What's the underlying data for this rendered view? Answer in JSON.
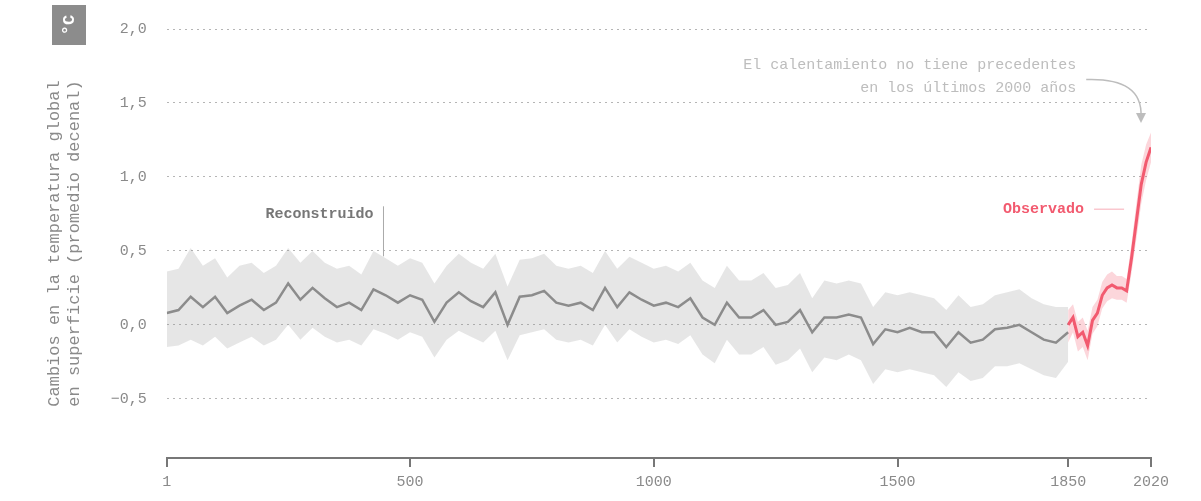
{
  "chart_data": {
    "type": "line",
    "unit": "°C",
    "y_label": [
      "Cambios en la temperatura global",
      "en superficie (promedio decenal)"
    ],
    "annotation": [
      "El calentamiento no tiene precedentes",
      "en los últimos 2000 años"
    ],
    "xlim": [
      1,
      2020
    ],
    "xticks": [
      1,
      500,
      1000,
      1500,
      1850,
      2020
    ],
    "ylim": [
      -0.9,
      2.0
    ],
    "yticks": [
      {
        "value": -0.5,
        "label": "−0,5"
      },
      {
        "value": 0.0,
        "label": "0,0"
      },
      {
        "value": 0.5,
        "label": "0,5"
      },
      {
        "value": 1.0,
        "label": "1,0"
      },
      {
        "value": 1.5,
        "label": "1,5"
      },
      {
        "value": 2.0,
        "label": "2,0"
      }
    ],
    "grid": true,
    "series": [
      {
        "name": "Reconstruido",
        "color": "#8c8c8c",
        "x": [
          1,
          25,
          50,
          75,
          100,
          125,
          150,
          175,
          200,
          225,
          250,
          275,
          300,
          325,
          350,
          375,
          400,
          425,
          450,
          475,
          500,
          525,
          550,
          575,
          600,
          625,
          650,
          675,
          700,
          725,
          750,
          775,
          800,
          825,
          850,
          875,
          900,
          925,
          950,
          975,
          1000,
          1025,
          1050,
          1075,
          1100,
          1125,
          1150,
          1175,
          1200,
          1225,
          1250,
          1275,
          1300,
          1325,
          1350,
          1375,
          1400,
          1425,
          1450,
          1475,
          1500,
          1525,
          1550,
          1575,
          1600,
          1625,
          1650,
          1675,
          1700,
          1725,
          1750,
          1775,
          1800,
          1825,
          1850
        ],
        "values": [
          0.08,
          0.1,
          0.19,
          0.12,
          0.19,
          0.08,
          0.13,
          0.17,
          0.1,
          0.15,
          0.28,
          0.17,
          0.25,
          0.18,
          0.12,
          0.15,
          0.1,
          0.24,
          0.2,
          0.15,
          0.2,
          0.17,
          0.02,
          0.15,
          0.22,
          0.16,
          0.12,
          0.22,
          0.0,
          0.19,
          0.2,
          0.23,
          0.15,
          0.13,
          0.15,
          0.1,
          0.25,
          0.12,
          0.22,
          0.17,
          0.13,
          0.15,
          0.12,
          0.18,
          0.05,
          0.0,
          0.15,
          0.05,
          0.05,
          0.1,
          0.0,
          0.02,
          0.1,
          -0.05,
          0.05,
          0.05,
          0.07,
          0.05,
          -0.13,
          -0.03,
          -0.05,
          -0.02,
          -0.05,
          -0.05,
          -0.15,
          -0.05,
          -0.12,
          -0.1,
          -0.03,
          -0.02,
          0.0,
          -0.05,
          -0.1,
          -0.12,
          -0.05
        ],
        "upper": [
          0.36,
          0.38,
          0.52,
          0.4,
          0.45,
          0.32,
          0.4,
          0.42,
          0.35,
          0.4,
          0.52,
          0.42,
          0.5,
          0.42,
          0.38,
          0.4,
          0.34,
          0.5,
          0.45,
          0.4,
          0.45,
          0.42,
          0.28,
          0.4,
          0.48,
          0.42,
          0.38,
          0.48,
          0.26,
          0.44,
          0.45,
          0.48,
          0.4,
          0.38,
          0.4,
          0.35,
          0.5,
          0.38,
          0.46,
          0.42,
          0.38,
          0.4,
          0.36,
          0.42,
          0.3,
          0.25,
          0.4,
          0.3,
          0.3,
          0.35,
          0.25,
          0.27,
          0.35,
          0.18,
          0.3,
          0.28,
          0.3,
          0.28,
          0.12,
          0.22,
          0.2,
          0.22,
          0.2,
          0.18,
          0.1,
          0.2,
          0.12,
          0.14,
          0.2,
          0.22,
          0.24,
          0.18,
          0.14,
          0.12,
          0.12
        ],
        "lower": [
          -0.15,
          -0.14,
          -0.1,
          -0.14,
          -0.08,
          -0.16,
          -0.12,
          -0.08,
          -0.14,
          -0.1,
          0.0,
          -0.1,
          -0.02,
          -0.08,
          -0.12,
          -0.1,
          -0.14,
          -0.03,
          -0.06,
          -0.1,
          -0.05,
          -0.08,
          -0.22,
          -0.1,
          -0.04,
          -0.08,
          -0.12,
          -0.04,
          -0.24,
          -0.07,
          -0.05,
          -0.03,
          -0.1,
          -0.12,
          -0.1,
          -0.14,
          0.0,
          -0.12,
          -0.03,
          -0.08,
          -0.12,
          -0.1,
          -0.13,
          -0.07,
          -0.2,
          -0.26,
          -0.1,
          -0.2,
          -0.2,
          -0.15,
          -0.27,
          -0.24,
          -0.16,
          -0.32,
          -0.22,
          -0.24,
          -0.2,
          -0.24,
          -0.4,
          -0.3,
          -0.32,
          -0.3,
          -0.32,
          -0.34,
          -0.42,
          -0.32,
          -0.38,
          -0.36,
          -0.28,
          -0.28,
          -0.26,
          -0.3,
          -0.34,
          -0.36,
          -0.25
        ]
      },
      {
        "name": "Observado",
        "color": "#f25a6f",
        "x": [
          1850,
          1860,
          1870,
          1880,
          1890,
          1900,
          1910,
          1920,
          1930,
          1940,
          1950,
          1960,
          1970,
          1980,
          1990,
          2000,
          2010,
          2020
        ],
        "values": [
          0.0,
          0.05,
          -0.08,
          -0.05,
          -0.14,
          0.03,
          0.08,
          0.2,
          0.25,
          0.27,
          0.25,
          0.25,
          0.23,
          0.45,
          0.7,
          0.95,
          1.1,
          1.2
        ],
        "upper": [
          0.1,
          0.14,
          0.02,
          0.05,
          -0.04,
          0.12,
          0.17,
          0.29,
          0.34,
          0.36,
          0.33,
          0.33,
          0.31,
          0.55,
          0.82,
          1.08,
          1.22,
          1.3
        ],
        "lower": [
          -0.12,
          -0.05,
          -0.18,
          -0.15,
          -0.24,
          -0.06,
          -0.01,
          0.11,
          0.16,
          0.18,
          0.17,
          0.17,
          0.15,
          0.35,
          0.58,
          0.82,
          0.98,
          1.1
        ]
      }
    ]
  }
}
